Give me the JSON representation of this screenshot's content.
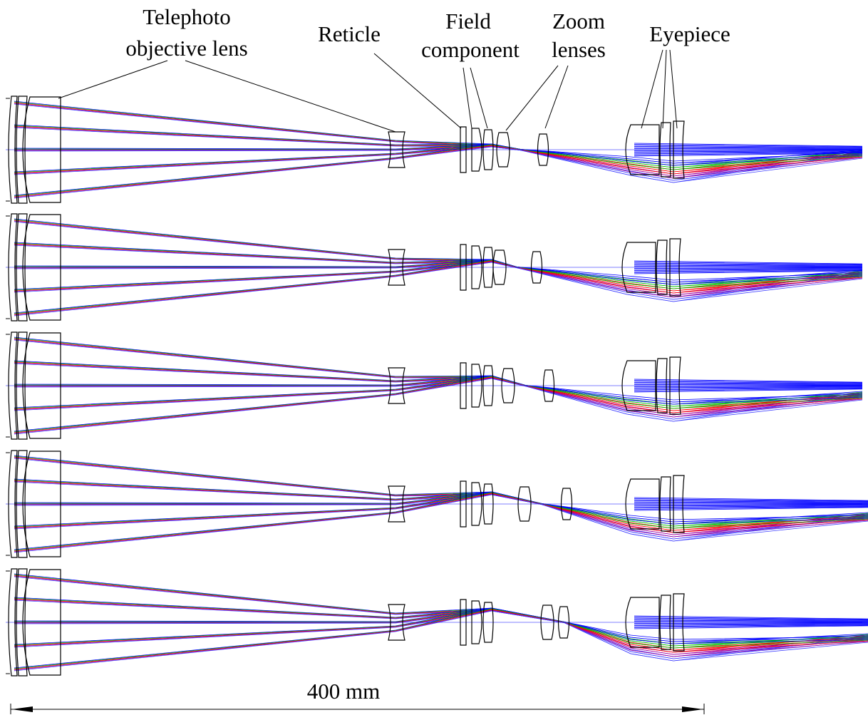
{
  "labels": {
    "objective": [
      "Telephoto",
      "objective lens"
    ],
    "reticle": "Reticle",
    "field": [
      "Field",
      "component"
    ],
    "zoom": [
      "Zoom",
      "lenses"
    ],
    "eyepiece": "Eyepiece"
  },
  "scale_bar": "400 mm"
}
